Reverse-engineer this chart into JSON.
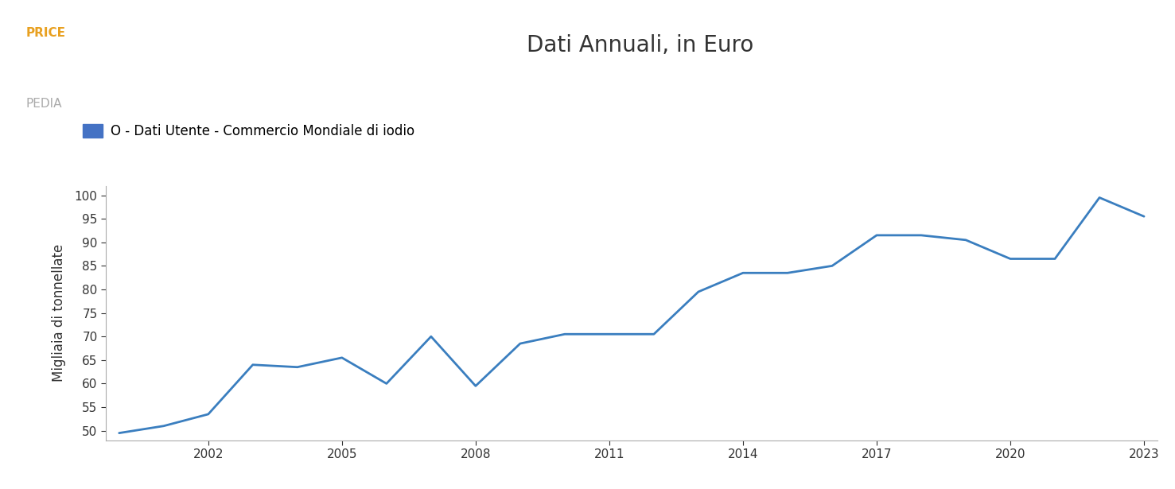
{
  "title": "Dati Annuali, in Euro",
  "ylabel": "Migliaia di tonnellate",
  "legend_label": "O - Dati Utente - Commercio Mondiale di iodio",
  "line_color": "#3a7ebf",
  "line_width": 2.0,
  "background_color": "#ffffff",
  "years": [
    2000,
    2001,
    2002,
    2003,
    2004,
    2005,
    2006,
    2007,
    2008,
    2009,
    2010,
    2011,
    2012,
    2013,
    2014,
    2015,
    2016,
    2017,
    2018,
    2019,
    2020,
    2021,
    2022,
    2023
  ],
  "values": [
    49.5,
    51.0,
    53.5,
    64.0,
    63.5,
    65.5,
    60.0,
    70.0,
    59.5,
    68.5,
    70.5,
    70.5,
    70.5,
    79.5,
    83.5,
    83.5,
    85.0,
    91.5,
    91.5,
    90.5,
    86.5,
    86.5,
    99.5,
    95.5
  ],
  "ylim": [
    48,
    102
  ],
  "yticks": [
    50,
    55,
    60,
    65,
    70,
    75,
    80,
    85,
    90,
    95,
    100
  ],
  "xticks": [
    2002,
    2005,
    2008,
    2011,
    2014,
    2017,
    2020,
    2023
  ],
  "legend_color": "#4472c4",
  "title_fontsize": 20,
  "label_fontsize": 12,
  "tick_fontsize": 11,
  "axis_color": "#aaaaaa",
  "text_color": "#333333",
  "logo_price_color": "#e8a020",
  "logo_pedia_color": "#aaaaaa"
}
